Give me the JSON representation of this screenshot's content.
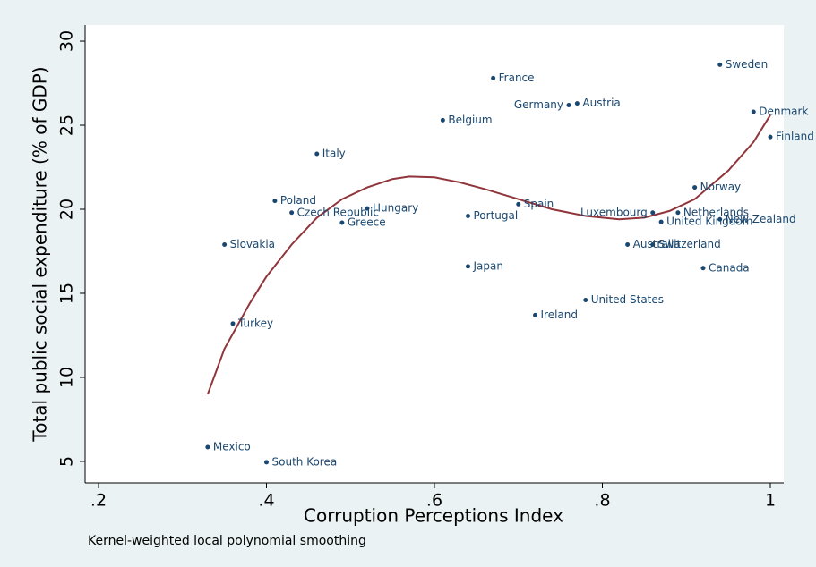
{
  "chart_data": {
    "type": "scatter",
    "xlabel": "Corruption Perceptions Index",
    "ylabel": "Total public social expenditure (% of GDP)",
    "note": "Kernel-weighted local polynomial smoothing",
    "xlim": [
      0.184,
      1.016
    ],
    "ylim": [
      3.72,
      30.96
    ],
    "xticks": [
      {
        "value": 0.2,
        "label": ".2"
      },
      {
        "value": 0.4,
        "label": ".4"
      },
      {
        "value": 0.6,
        "label": ".6"
      },
      {
        "value": 0.8,
        "label": ".8"
      },
      1
    ],
    "yticks": [
      5,
      10,
      15,
      20,
      25,
      30
    ],
    "grid": false,
    "points": {
      "color": "#1a476f",
      "labels": [
        "Mexico",
        "South Korea",
        "Turkey",
        "Slovakia",
        "Poland",
        "Czech Republic",
        "Italy",
        "Greece",
        "Hungary",
        "Belgium",
        "Portugal",
        "Japan",
        "France",
        "Spain",
        "Ireland",
        "Germany",
        "Austria",
        "United States",
        "Australia",
        "Luxembourg",
        "Switzerland",
        "United Kingdom",
        "Netherlands",
        "Norway",
        "Sweden",
        "Canada",
        "New Zealand",
        "Denmark",
        "Finland"
      ],
      "x": [
        0.33,
        0.4,
        0.36,
        0.35,
        0.41,
        0.43,
        0.46,
        0.49,
        0.52,
        0.61,
        0.64,
        0.64,
        0.67,
        0.7,
        0.72,
        0.76,
        0.77,
        0.78,
        0.83,
        0.86,
        0.86,
        0.87,
        0.89,
        0.91,
        0.94,
        0.92,
        0.94,
        0.98,
        1.0
      ],
      "y": [
        5.85,
        4.95,
        13.2,
        17.9,
        20.5,
        19.8,
        23.3,
        19.2,
        20.05,
        25.3,
        19.6,
        16.6,
        27.8,
        20.3,
        13.7,
        26.2,
        26.3,
        14.6,
        17.9,
        19.8,
        17.9,
        19.25,
        19.8,
        21.3,
        28.6,
        16.5,
        19.4,
        25.8,
        24.3
      ]
    },
    "fit": {
      "color": "#90353b",
      "x": [
        0.33,
        0.35,
        0.38,
        0.4,
        0.43,
        0.46,
        0.49,
        0.52,
        0.55,
        0.57,
        0.6,
        0.63,
        0.66,
        0.7,
        0.74,
        0.78,
        0.82,
        0.85,
        0.88,
        0.91,
        0.95,
        0.98,
        1.0
      ],
      "y": [
        9.0,
        11.7,
        14.4,
        16.0,
        17.9,
        19.5,
        20.6,
        21.3,
        21.8,
        21.95,
        21.9,
        21.6,
        21.2,
        20.6,
        20.0,
        19.6,
        19.4,
        19.5,
        19.9,
        20.6,
        22.3,
        24.0,
        25.6
      ]
    }
  }
}
